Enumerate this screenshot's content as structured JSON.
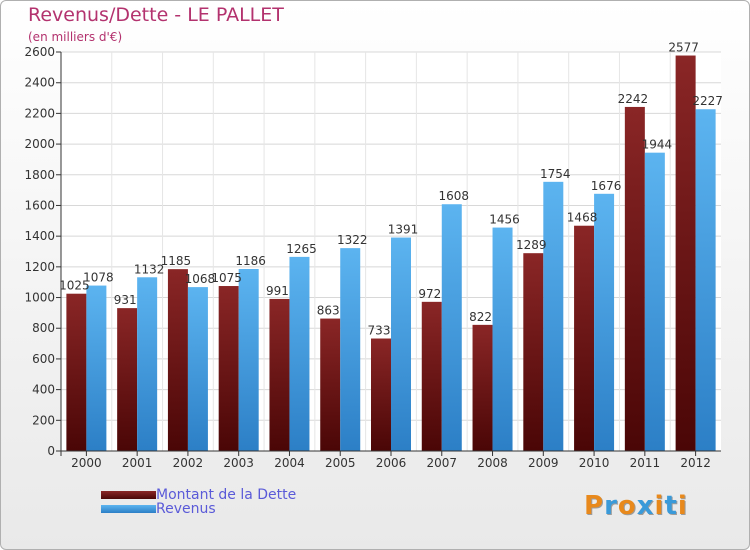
{
  "chart_data": {
    "type": "bar",
    "title": "Revenus/Dette - LE PALLET",
    "subtitle": "(en milliers d'€)",
    "xlabel": "",
    "ylabel": "",
    "ylim": [
      0,
      2600
    ],
    "yticks": [
      0,
      200,
      400,
      600,
      800,
      1000,
      1200,
      1400,
      1600,
      1800,
      2000,
      2200,
      2400,
      2600
    ],
    "grid": true,
    "categories": [
      "2000",
      "2001",
      "2002",
      "2003",
      "2004",
      "2005",
      "2006",
      "2007",
      "2008",
      "2009",
      "2010",
      "2011",
      "2012"
    ],
    "series": [
      {
        "name": "Montant de la Dette",
        "color": "#7a1a1a",
        "values": [
          1025,
          931,
          1185,
          1075,
          991,
          863,
          733,
          972,
          822,
          1289,
          1468,
          2242,
          2577
        ],
        "labels": [
          "1025",
          "931",
          "1185",
          "1075",
          "991",
          "863",
          "733",
          "972",
          "822",
          "1289",
          "1468",
          "2242",
          "2577"
        ]
      },
      {
        "name": "Revenus",
        "color": "#4aa3e6",
        "values": [
          1078,
          1132,
          1068,
          1186,
          1265,
          1322,
          1391,
          1608,
          1456,
          1754,
          1676,
          1944,
          2227
        ],
        "labels": [
          "1078",
          "1132",
          "1068",
          "1186",
          "1265",
          "1322",
          "1391",
          "1608",
          "1456",
          "1754",
          "1676",
          "1944",
          "2227"
        ]
      }
    ]
  },
  "legend": {
    "debt_label": "Montant de la Dette",
    "revenue_label": "Revenus",
    "debt_color": "#7a1a1a",
    "revenue_color": "#4aa3e6"
  },
  "logo": {
    "text": "Proxiti",
    "colors": [
      "#e8891c",
      "#3a9ad9",
      "#e8891c",
      "#3a9ad9",
      "#e8891c",
      "#3a9ad9",
      "#e8891c"
    ]
  }
}
